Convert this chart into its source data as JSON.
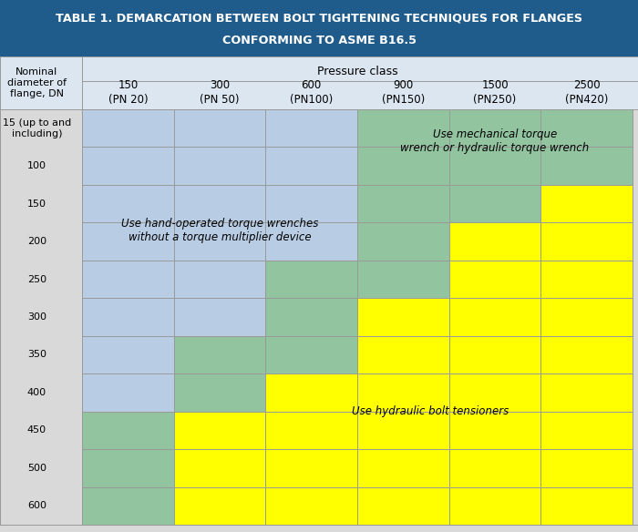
{
  "title_line1": "TABLE 1. DEMARCATION BETWEEN BOLT TIGHTENING TECHNIQUES FOR FLANGES",
  "title_line2": "CONFORMING TO ASME B16.5",
  "title_bg_color": "#1F5C8B",
  "title_text_color": "#ffffff",
  "header_bg_color": "#dce6f1",
  "col_header": "Pressure class",
  "pressure_classes": [
    [
      "150",
      "(PN 20)"
    ],
    [
      "300",
      "(PN 50)"
    ],
    [
      "600",
      "(PN100)"
    ],
    [
      "900",
      "(PN150)"
    ],
    [
      "1500",
      "(PN250)"
    ],
    [
      "2500",
      "(PN420)"
    ]
  ],
  "dn_rows": [
    "15 (up to and\nincluding)",
    "100",
    "150",
    "200",
    "250",
    "300",
    "350",
    "400",
    "450",
    "500",
    "600"
  ],
  "color_blue": "#b8cce4",
  "color_green": "#92c4a0",
  "color_yellow": "#ffff00",
  "color_border": "#999999",
  "color_bg": "#d9d9d9",
  "label_blue": "Use hand-operated torque wrenches\nwithout a torque multiplier device",
  "label_green_top": "Use mechanical torque\nwrench or hydraulic torque wrench",
  "label_yellow": "Use hydraulic bolt tensioners",
  "zone_map": [
    [
      "blue",
      "blue",
      "blue",
      "green",
      "green",
      "green"
    ],
    [
      "blue",
      "blue",
      "blue",
      "green",
      "green",
      "green"
    ],
    [
      "blue",
      "blue",
      "blue",
      "green",
      "green",
      "yellow"
    ],
    [
      "blue",
      "blue",
      "blue",
      "green",
      "yellow",
      "yellow"
    ],
    [
      "blue",
      "blue",
      "green",
      "green",
      "yellow",
      "yellow"
    ],
    [
      "blue",
      "blue",
      "green",
      "yellow",
      "yellow",
      "yellow"
    ],
    [
      "blue",
      "green",
      "green",
      "yellow",
      "yellow",
      "yellow"
    ],
    [
      "blue",
      "green",
      "yellow",
      "yellow",
      "yellow",
      "yellow"
    ],
    [
      "green",
      "yellow",
      "yellow",
      "yellow",
      "yellow",
      "yellow"
    ],
    [
      "green",
      "yellow",
      "yellow",
      "yellow",
      "yellow",
      "yellow"
    ],
    [
      "green",
      "yellow",
      "yellow",
      "yellow",
      "yellow",
      "yellow"
    ]
  ]
}
